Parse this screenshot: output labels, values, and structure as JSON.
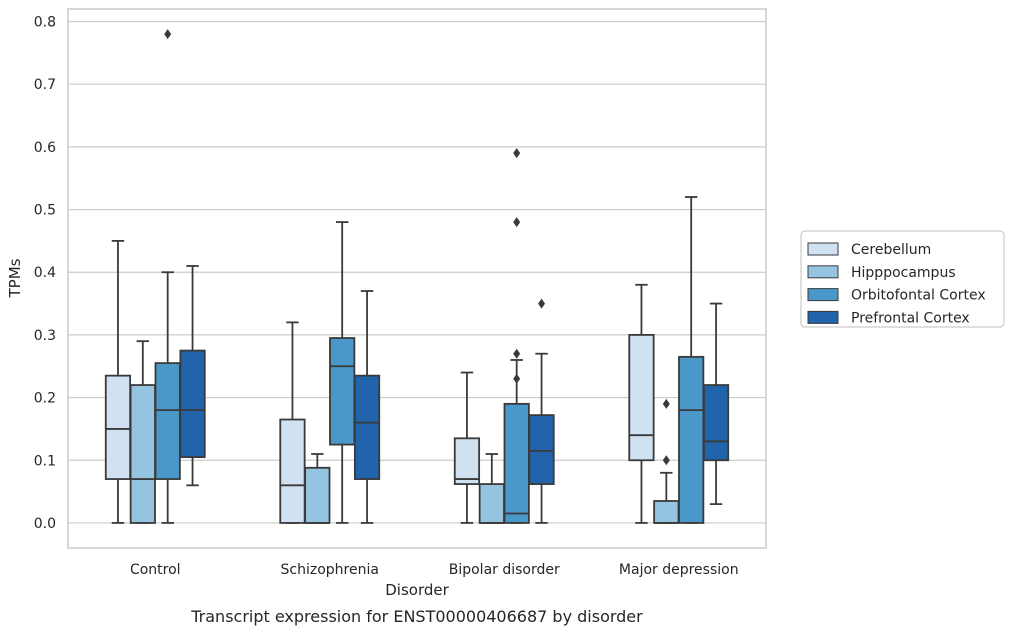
{
  "chart_data": {
    "type": "box",
    "caption": "Transcript expression for ENST00000406687 by disorder",
    "xlabel": "Disorder",
    "ylabel": "TPMs",
    "ylim": [
      -0.04,
      0.82
    ],
    "yticks": [
      "0.0",
      "0.1",
      "0.2",
      "0.3",
      "0.4",
      "0.5",
      "0.6",
      "0.7",
      "0.8"
    ],
    "grid": "horizontal",
    "legend_position": "right",
    "categories": [
      "Control",
      "Schizophrenia",
      "Bipolar disorder",
      "Major depression"
    ],
    "series": [
      {
        "name": "Cerebellum",
        "color": "#d0e1f2",
        "boxes": [
          {
            "whislo": 0.0,
            "q1": 0.07,
            "med": 0.15,
            "q3": 0.235,
            "whishi": 0.45,
            "fliers": []
          },
          {
            "whislo": 0.0,
            "q1": 0.0,
            "med": 0.06,
            "q3": 0.165,
            "whishi": 0.32,
            "fliers": []
          },
          {
            "whislo": 0.0,
            "q1": 0.062,
            "med": 0.07,
            "q3": 0.135,
            "whishi": 0.24,
            "fliers": []
          },
          {
            "whislo": 0.0,
            "q1": 0.1,
            "med": 0.14,
            "q3": 0.3,
            "whishi": 0.38,
            "fliers": []
          }
        ]
      },
      {
        "name": "Hipppocampus",
        "color": "#94c4df",
        "boxes": [
          {
            "whislo": 0.0,
            "q1": 0.0,
            "med": 0.07,
            "q3": 0.22,
            "whishi": 0.29,
            "fliers": []
          },
          {
            "whislo": 0.0,
            "q1": 0.0,
            "med": 0.0,
            "q3": 0.088,
            "whishi": 0.11,
            "fliers": []
          },
          {
            "whislo": 0.0,
            "q1": 0.0,
            "med": 0.0,
            "q3": 0.062,
            "whishi": 0.11,
            "fliers": []
          },
          {
            "whislo": 0.0,
            "q1": 0.0,
            "med": 0.0,
            "q3": 0.035,
            "whishi": 0.08,
            "fliers": [
              0.1,
              0.19
            ]
          }
        ]
      },
      {
        "name": "Orbitofontal Cortex",
        "color": "#4a98c9",
        "boxes": [
          {
            "whislo": 0.0,
            "q1": 0.07,
            "med": 0.18,
            "q3": 0.255,
            "whishi": 0.4,
            "fliers": [
              0.78
            ]
          },
          {
            "whislo": 0.0,
            "q1": 0.125,
            "med": 0.25,
            "q3": 0.295,
            "whishi": 0.48,
            "fliers": []
          },
          {
            "whislo": 0.0,
            "q1": 0.0,
            "med": 0.015,
            "q3": 0.19,
            "whishi": 0.26,
            "fliers": [
              0.23,
              0.27,
              0.48,
              0.59
            ]
          },
          {
            "whislo": 0.0,
            "q1": 0.0,
            "med": 0.18,
            "q3": 0.265,
            "whishi": 0.52,
            "fliers": []
          }
        ]
      },
      {
        "name": "Prefrontal Cortex",
        "color": "#2164ab",
        "boxes": [
          {
            "whislo": 0.06,
            "q1": 0.105,
            "med": 0.18,
            "q3": 0.275,
            "whishi": 0.41,
            "fliers": []
          },
          {
            "whislo": 0.0,
            "q1": 0.07,
            "med": 0.16,
            "q3": 0.235,
            "whishi": 0.37,
            "fliers": []
          },
          {
            "whislo": 0.0,
            "q1": 0.062,
            "med": 0.115,
            "q3": 0.172,
            "whishi": 0.27,
            "fliers": [
              0.35
            ]
          },
          {
            "whislo": 0.03,
            "q1": 0.1,
            "med": 0.13,
            "q3": 0.22,
            "whishi": 0.35,
            "fliers": []
          }
        ]
      }
    ]
  }
}
